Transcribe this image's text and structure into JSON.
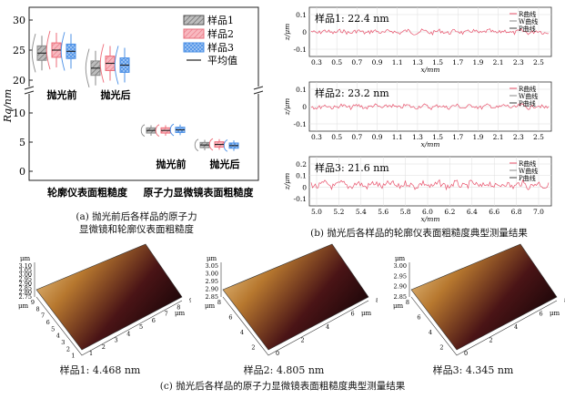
{
  "panel_a": {
    "ylabel": "Rq/nm",
    "yticks_upper": [
      "20",
      "25",
      "30"
    ],
    "yticks_lower": [
      "0",
      "5",
      "10"
    ],
    "group_labels": [
      "抛光前",
      "抛光后",
      "抛光前",
      "抛光后"
    ],
    "x_categories": [
      "轮廓仪表面粗糙度",
      "原子力显微镜表面粗糙度"
    ],
    "legend": [
      "样品1",
      "样品2",
      "样品3",
      "平均值"
    ],
    "caption_line1": "(a) 抛光前后各样品的原子力",
    "caption_line2": "显微镜和轮廓仪表面粗糙度",
    "colors": {
      "sample1": "#8a8a8a",
      "sample2": "#ee6b78",
      "sample3": "#4a8fe6"
    }
  },
  "chart_data": {
    "type": "box",
    "title": "",
    "ylabel": "Rq/nm",
    "ylim_upper": [
      17.5,
      30
    ],
    "ylim_lower": [
      0,
      13
    ],
    "categories": [
      "轮廓仪-抛光前",
      "轮廓仪-抛光后",
      "原子力-抛光前",
      "原子力-抛光后"
    ],
    "series": [
      {
        "name": "样品1",
        "values": [
          24.5,
          22.0,
          7.0,
          4.5
        ]
      },
      {
        "name": "样品2",
        "values": [
          25.0,
          22.8,
          7.0,
          4.6
        ]
      },
      {
        "name": "样品3",
        "values": [
          24.8,
          22.5,
          7.1,
          4.4
        ]
      }
    ]
  },
  "panel_b": {
    "plots": [
      {
        "label": "样品1: 22.4 nm",
        "xticks": [
          "0.3",
          "0.5",
          "0.7",
          "0.9",
          "1.1",
          "1.3",
          "1.5",
          "1.7",
          "1.9",
          "2.1",
          "2.3",
          "2.5"
        ],
        "yticks": [
          "0.1",
          "0",
          "-0.1"
        ]
      },
      {
        "label": "样品2: 23.2 nm",
        "xticks": [
          "0.3",
          "0.5",
          "0.7",
          "0.9",
          "1.1",
          "1.3",
          "1.5",
          "1.7",
          "1.9",
          "2.1",
          "2.3",
          "2.5"
        ],
        "yticks": [
          "0.1",
          "0",
          "-0.1"
        ]
      },
      {
        "label": "样品3: 21.6 nm",
        "xticks": [
          "5.0",
          "5.2",
          "5.4",
          "5.6",
          "5.8",
          "6.0",
          "6.2",
          "6.4",
          "6.6",
          "6.8",
          "7.0"
        ],
        "yticks": [
          "0.2",
          "0.1",
          "0",
          "-0.1"
        ]
      }
    ],
    "xlabel": "x/mm",
    "ylabel": "z/μm",
    "legend": [
      "R曲线",
      "W曲线",
      "P曲线"
    ],
    "caption": "(b) 抛光后各样品的轮廓仪表面粗糙度典型测量结果"
  },
  "panel_c": {
    "maps": [
      {
        "label": "样品1: 4.468 nm",
        "zticks": [
          "3.10",
          "3.05",
          "3.00",
          "2.95",
          "2.90",
          "2.85",
          "2.80",
          "2.75"
        ],
        "xticks": [
          "9",
          "8",
          "7",
          "6",
          "5",
          "4",
          "3",
          "2",
          "1",
          "0"
        ],
        "yticks": [
          "1",
          "2",
          "3",
          "4",
          "5",
          "6",
          "7",
          "8",
          "9"
        ]
      },
      {
        "label": "样品2: 4.805 nm",
        "zticks": [
          "3.05",
          "3.00",
          "2.95",
          "2.90",
          "2.85"
        ],
        "xticks": [
          "8",
          "6",
          "4",
          "2",
          "0"
        ],
        "yticks": [
          "0",
          "2",
          "4",
          "6",
          "8"
        ]
      },
      {
        "label": "样品3: 4.345 nm",
        "zticks": [
          "3.00",
          "2.95",
          "2.90",
          "2.85"
        ],
        "xticks": [
          "8",
          "6",
          "4",
          "2",
          "0"
        ],
        "yticks": [
          "0",
          "2",
          "4",
          "6",
          "8"
        ]
      }
    ],
    "unit": "μm",
    "caption": "(c) 抛光后各样品的原子力显微镜表面粗糙度典型测量结果"
  }
}
